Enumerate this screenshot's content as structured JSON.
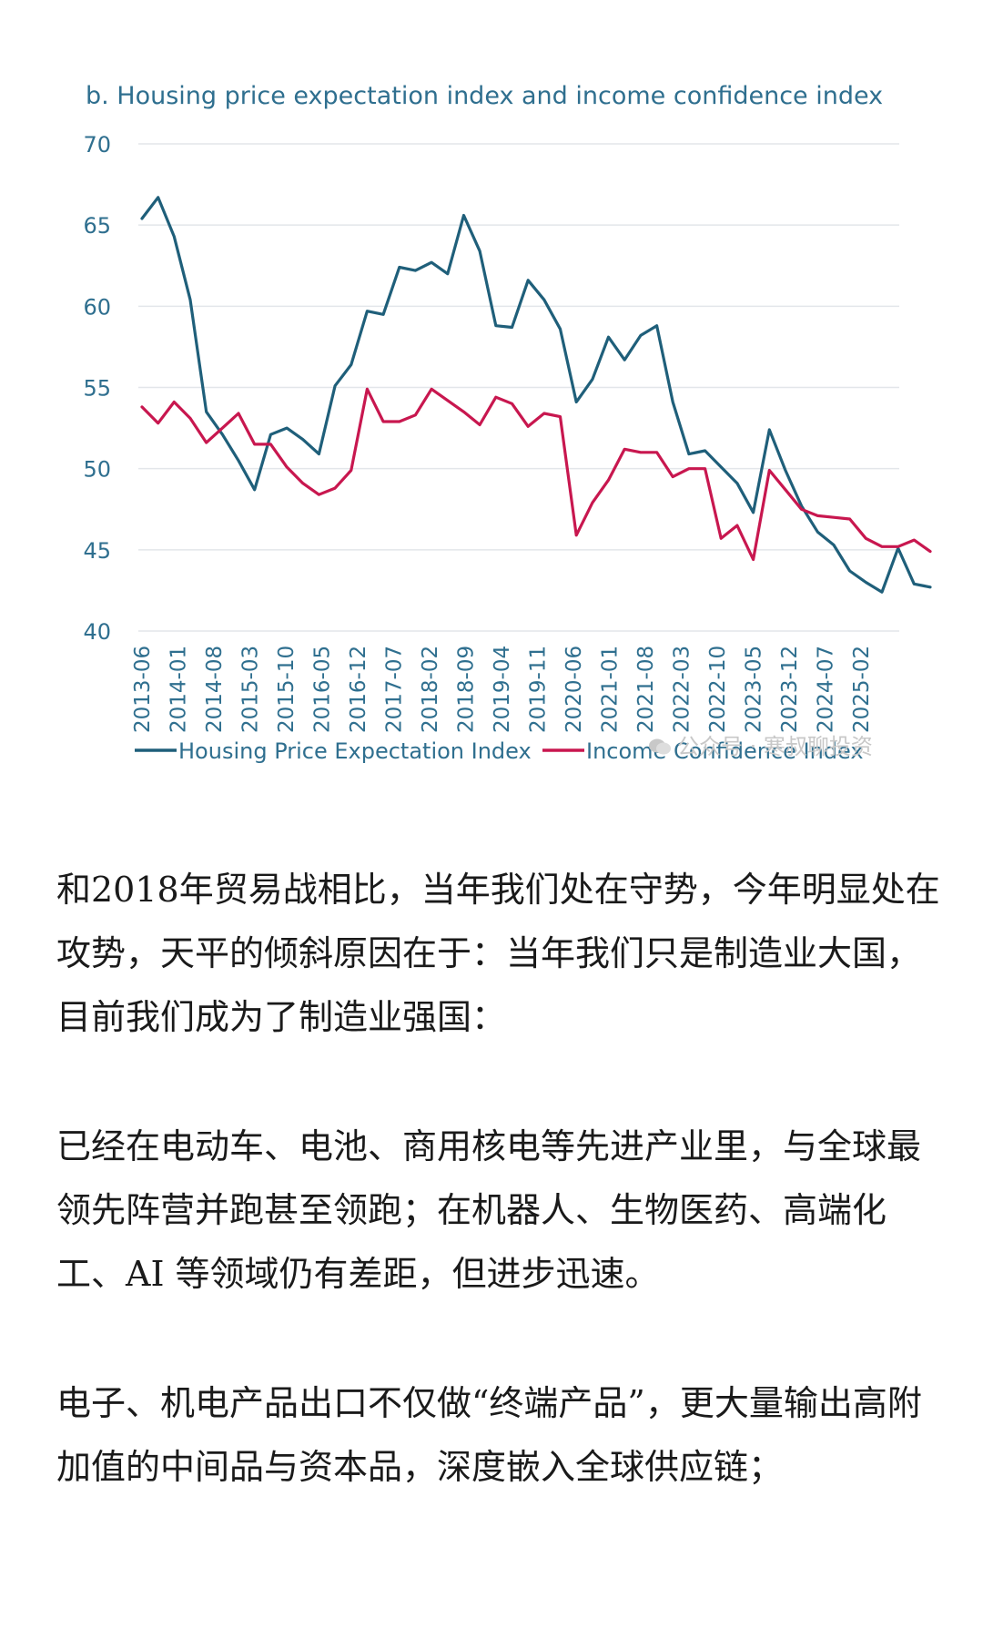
{
  "chart_data": {
    "type": "line",
    "title": "b. Housing price expectation index and income confidence index",
    "ylim": [
      40,
      70
    ],
    "yticks": [
      "40",
      "45",
      "50",
      "55",
      "60",
      "65",
      "70"
    ],
    "xtick_labels": [
      "2013-06",
      "2014-01",
      "2014-08",
      "2015-03",
      "2015-10",
      "2016-05",
      "2016-12",
      "2017-07",
      "2018-02",
      "2018-09",
      "2019-04",
      "2019-11",
      "2020-06",
      "2021-01",
      "2021-08",
      "2022-03",
      "2022-10",
      "2023-05",
      "2023-12",
      "2024-07",
      "2025-02"
    ],
    "grid": "horizontal",
    "legend_position": "bottom",
    "series": [
      {
        "name": "Housing Price Expectation Index",
        "color": "#1f5f7a",
        "values": [
          65.4,
          66.7,
          64.3,
          60.4,
          53.5,
          52.1,
          50.5,
          48.7,
          52.1,
          52.5,
          51.8,
          50.9,
          55.1,
          56.4,
          59.7,
          59.5,
          62.4,
          62.2,
          62.7,
          62.0,
          65.6,
          63.4,
          58.8,
          58.7,
          61.6,
          60.4,
          58.6,
          54.1,
          55.5,
          58.1,
          56.7,
          58.2,
          58.8,
          54.1,
          50.9,
          51.1,
          50.1,
          49.1,
          47.3,
          52.4,
          49.9,
          47.7,
          46.1,
          45.3,
          43.7,
          43.0,
          42.4,
          45.1,
          42.9,
          42.7
        ]
      },
      {
        "name": "Income Confidence Index",
        "color": "#c8174f",
        "values": [
          53.8,
          52.8,
          54.1,
          53.1,
          51.6,
          52.5,
          53.4,
          51.5,
          51.5,
          50.1,
          49.1,
          48.4,
          48.8,
          49.9,
          54.9,
          52.9,
          52.9,
          53.3,
          54.9,
          54.2,
          53.5,
          52.7,
          54.4,
          54.0,
          52.6,
          53.4,
          53.2,
          45.9,
          47.9,
          49.3,
          51.2,
          51.0,
          51.0,
          49.5,
          50.0,
          50.0,
          45.7,
          46.5,
          44.4,
          49.9,
          48.7,
          47.5,
          47.1,
          47.0,
          46.9,
          45.7,
          45.2,
          45.2,
          45.6,
          44.9
        ]
      }
    ]
  },
  "watermark": "公众号 · 寒叔聊投资",
  "article": {
    "paragraphs": [
      "和2018年贸易战相比，当年我们处在守势，今年明显处在攻势，天平的倾斜原因在于：当年我们只是制造业大国，目前我们成为了制造业强国：",
      "已经在电动车、电池、商用核电等先进产业里，与全球最领先阵营并跑甚至领跑；在机器人、生物医药、高端化工、AI 等领域仍有差距，但进步迅速。",
      "电子、机电产品出口不仅做“终端产品”，更大量输出高附加值的中间品与资本品，深度嵌入全球供应链；"
    ]
  }
}
